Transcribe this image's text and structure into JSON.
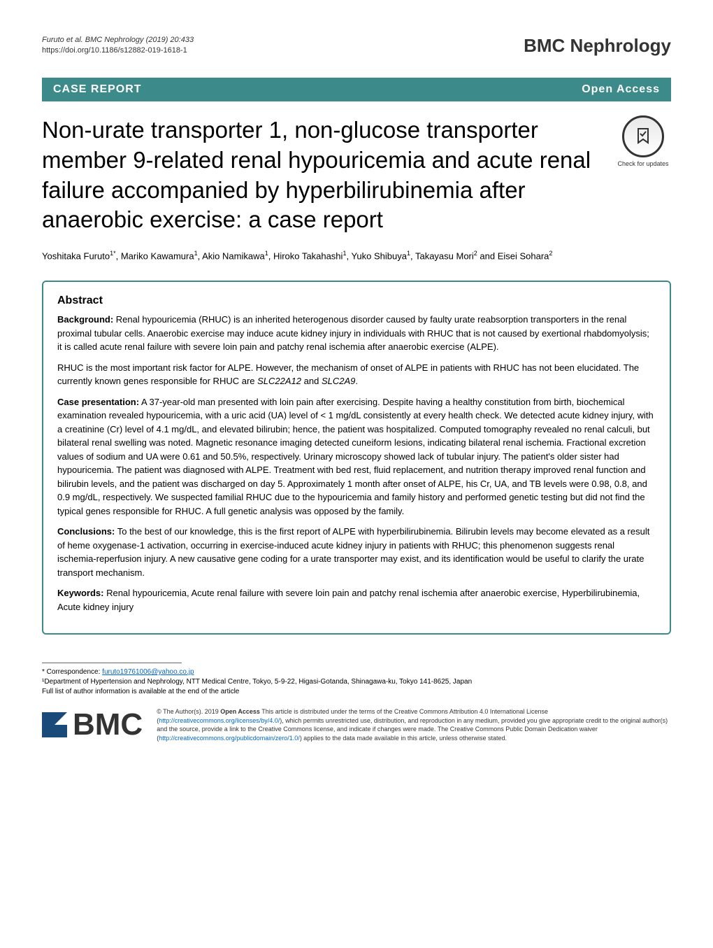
{
  "header": {
    "citation": "Furuto et al. BMC Nephrology     (2019) 20:433",
    "doi": "https://doi.org/10.1186/s12882-019-1618-1",
    "journal": "BMC Nephrology"
  },
  "bar": {
    "left": "CASE REPORT",
    "right": "Open Access"
  },
  "title": "Non-urate transporter 1, non-glucose transporter member 9-related renal hypouricemia and acute renal failure accompanied by hyperbilirubinemia after anaerobic exercise: a case report",
  "check_updates": {
    "label": "Check for updates"
  },
  "authors_html": "Yoshitaka Furuto<sup>1*</sup>, Mariko Kawamura<sup>1</sup>, Akio Namikawa<sup>1</sup>, Hiroko Takahashi<sup>1</sup>, Yuko Shibuya<sup>1</sup>, Takayasu Mori<sup>2</sup> and Eisei Sohara<sup>2</sup>",
  "abstract": {
    "heading": "Abstract",
    "background_label": "Background:",
    "background_text": " Renal hypouricemia (RHUC) is an inherited heterogenous disorder caused by faulty urate reabsorption transporters in the renal proximal tubular cells. Anaerobic exercise may induce acute kidney injury in individuals with RHUC that is not caused by exertional rhabdomyolysis; it is called acute renal failure with severe loin pain and patchy renal ischemia after anaerobic exercise (ALPE).",
    "background_text2": "RHUC is the most important risk factor for ALPE. However, the mechanism of onset of ALPE in patients with RHUC has not been elucidated. The currently known genes responsible for RHUC are <em>SLC22A12</em> and <em>SLC2A9</em>.",
    "case_label": "Case presentation:",
    "case_text": " A 37-year-old man presented with loin pain after exercising. Despite having a healthy constitution from birth, biochemical examination revealed hypouricemia, with a uric acid (UA) level of < 1 mg/dL consistently at every health check. We detected acute kidney injury, with a creatinine (Cr) level of 4.1 mg/dL, and elevated bilirubin; hence, the patient was hospitalized. Computed tomography revealed no renal calculi, but bilateral renal swelling was noted. Magnetic resonance imaging detected cuneiform lesions, indicating bilateral renal ischemia. Fractional excretion values of sodium and UA were 0.61 and 50.5%, respectively. Urinary microscopy showed lack of tubular injury. The patient's older sister had hypouricemia. The patient was diagnosed with ALPE. Treatment with bed rest, fluid replacement, and nutrition therapy improved renal function and bilirubin levels, and the patient was discharged on day 5. Approximately 1 month after onset of ALPE, his Cr, UA, and TB levels were 0.98, 0.8, and 0.9 mg/dL, respectively. We suspected familial RHUC due to the hypouricemia and family history and performed genetic testing but did not find the typical genes responsible for RHUC. A full genetic analysis was opposed by the family.",
    "conclusions_label": "Conclusions:",
    "conclusions_text": " To the best of our knowledge, this is the first report of ALPE with hyperbilirubinemia. Bilirubin levels may become elevated as a result of heme oxygenase-1 activation, occurring in exercise-induced acute kidney injury in patients with RHUC; this phenomenon suggests renal ischemia-reperfusion injury. A new causative gene coding for a urate transporter may exist, and its identification would be useful to clarify the urate transport mechanism.",
    "keywords_label": "Keywords:",
    "keywords_text": " Renal hypouricemia, Acute renal failure with severe loin pain and patchy renal ischemia after anaerobic exercise, Hyperbilirubinemia, Acute kidney injury"
  },
  "correspondence": {
    "line1_prefix": "* Correspondence: ",
    "email": "furuto19761006@yahoo.co.jp",
    "line2": "¹Department of Hypertension and Nephrology, NTT Medical Centre, Tokyo, 5-9-22, Higasi-Gotanda, Shinagawa-ku, Tokyo 141-8625, Japan",
    "line3": "Full list of author information is available at the end of the article"
  },
  "footer": {
    "bmc": "BMC",
    "license_html": "© The Author(s). 2019 <span class=\"bold\">Open Access</span> This article is distributed under the terms of the Creative Commons Attribution 4.0 International License (<a href=\"#\">http://creativecommons.org/licenses/by/4.0/</a>), which permits unrestricted use, distribution, and reproduction in any medium, provided you give appropriate credit to the original author(s) and the source, provide a link to the Creative Commons license, and indicate if changes were made. The Creative Commons Public Domain Dedication waiver (<a href=\"#\">http://creativecommons.org/publicdomain/zero/1.0/</a>) applies to the data made available in this article, unless otherwise stated."
  },
  "colors": {
    "teal": "#3c8a8a",
    "link": "#0066cc",
    "text": "#000000",
    "bg": "#ffffff"
  }
}
